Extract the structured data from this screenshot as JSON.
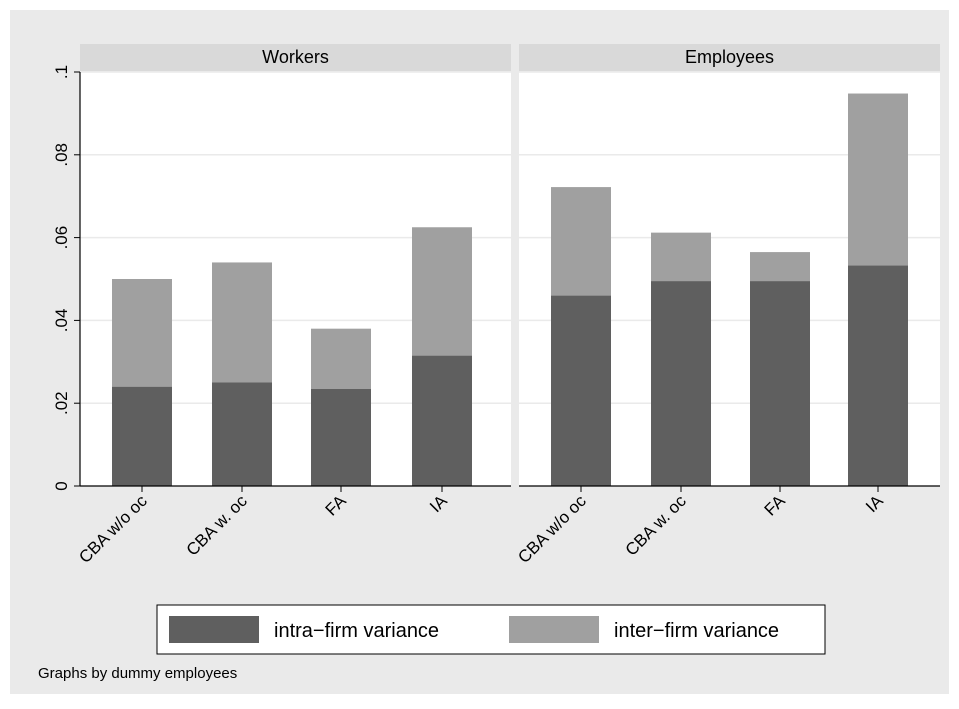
{
  "colors": {
    "background": "#eaeaea",
    "plot_background": "#ffffff",
    "panel_header": "#d9d9d9",
    "grid": "#eaeaea",
    "intra": "#5f5f5f",
    "inter": "#a0a0a0",
    "axis": "#000000"
  },
  "chart_data": {
    "type": "bar",
    "stacked": true,
    "note": "Graphs by dummy employees",
    "categories": [
      "CBA w/o oc",
      "CBA w. oc",
      "FA",
      "IA"
    ],
    "ylim": [
      0,
      0.1
    ],
    "yticks": [
      0,
      0.02,
      0.04,
      0.06,
      0.08,
      0.1
    ],
    "ytick_labels": [
      "0",
      ".02",
      ".04",
      ".06",
      ".08",
      ".1"
    ],
    "grid": true,
    "legend": {
      "position": "bottom",
      "entries": [
        "intra−firm variance",
        "inter−firm variance"
      ]
    },
    "panels": [
      {
        "title": "Workers",
        "series": [
          {
            "name": "intra−firm variance",
            "values": [
              0.024,
              0.025,
              0.0235,
              0.0315
            ]
          },
          {
            "name": "inter−firm variance",
            "values": [
              0.026,
              0.029,
              0.0145,
              0.031
            ]
          }
        ]
      },
      {
        "title": "Employees",
        "series": [
          {
            "name": "intra−firm variance",
            "values": [
              0.046,
              0.0495,
              0.0495,
              0.0533
            ]
          },
          {
            "name": "inter−firm variance",
            "values": [
              0.0262,
              0.0117,
              0.007,
              0.0415
            ]
          }
        ]
      }
    ]
  }
}
